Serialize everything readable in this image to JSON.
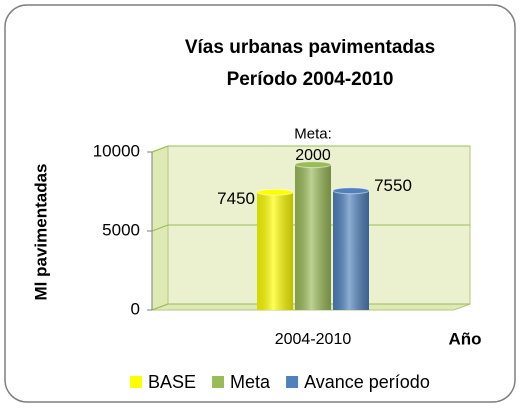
{
  "chart_data": {
    "type": "bar3d",
    "title": [
      "Vías  urbanas pavimentadas",
      "Período 2004-2010"
    ],
    "x_label": "Año",
    "y_label": "Ml pavimentadas",
    "categories": [
      "2004-2010"
    ],
    "series": [
      {
        "name": "BASE",
        "color": "#ffff00",
        "values": [
          7450
        ]
      },
      {
        "name": "Meta",
        "color": "#9bbb59",
        "values": [
          9200
        ],
        "annotation": [
          "Meta:",
          "2000"
        ]
      },
      {
        "name": "Avance período",
        "color": "#4f81bd",
        "values": [
          7550
        ]
      }
    ],
    "ylim": [
      0,
      10000
    ],
    "yticks": [
      0,
      5000,
      10000
    ],
    "grid": true,
    "legend": "bottom"
  }
}
